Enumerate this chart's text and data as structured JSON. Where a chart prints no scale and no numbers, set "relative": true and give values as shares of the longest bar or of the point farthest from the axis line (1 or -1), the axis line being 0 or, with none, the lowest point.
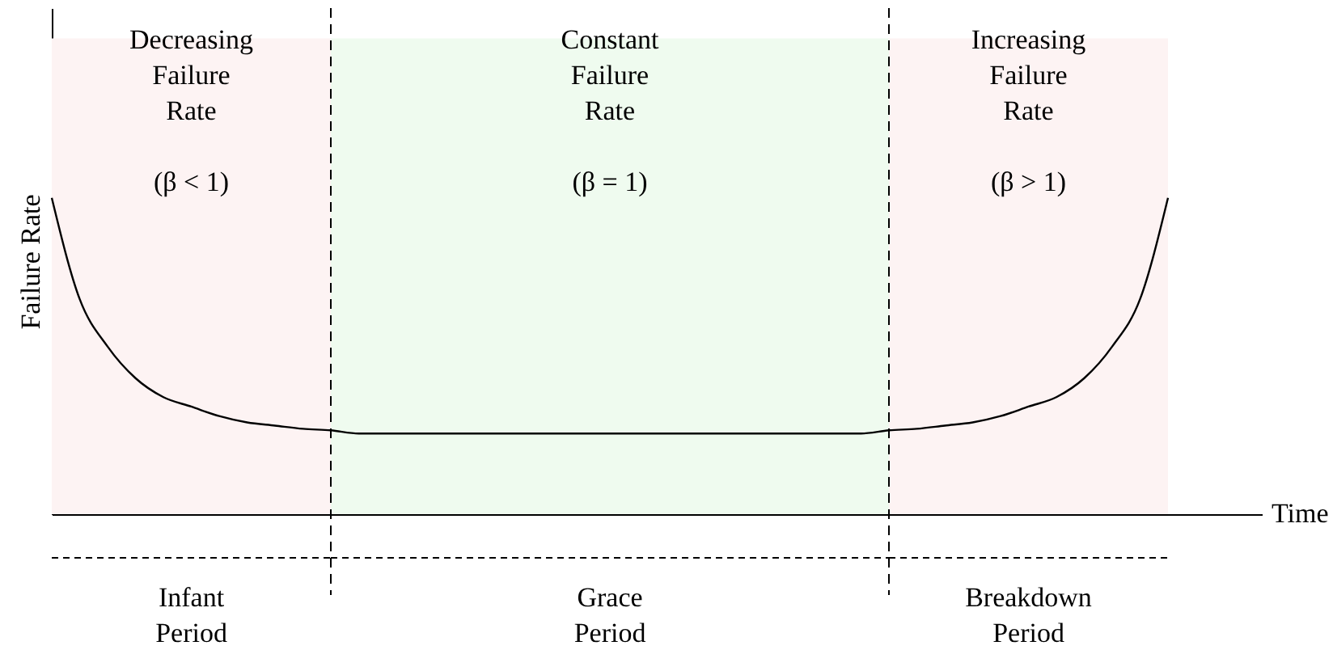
{
  "chart_data": {
    "type": "line",
    "relative": true,
    "xlabel": "Time",
    "ylabel": "Failure Rate",
    "categories": [
      null,
      null,
      null,
      null,
      null,
      null,
      null,
      null,
      null,
      null,
      null,
      null,
      null,
      null,
      null,
      null,
      null,
      null,
      null,
      null,
      null,
      null,
      null,
      null,
      null,
      null,
      null,
      null,
      null,
      null,
      null,
      null,
      null,
      null,
      null,
      null,
      null,
      null,
      null,
      null,
      null
    ],
    "series": [
      {
        "color": "#000000",
        "values": [
          1.0,
          0.68,
          0.53,
          0.43,
          0.37,
          0.34,
          0.31,
          0.29,
          0.28,
          0.27,
          0.265,
          0.255,
          0.255,
          0.255,
          0.255,
          0.255,
          0.255,
          0.255,
          0.255,
          0.255,
          0.255,
          0.255,
          0.255,
          0.255,
          0.255,
          0.255,
          0.255,
          0.255,
          0.255,
          0.255,
          0.265,
          0.27,
          0.28,
          0.29,
          0.31,
          0.34,
          0.37,
          0.43,
          0.53,
          0.68,
          1.0
        ]
      }
    ],
    "annotations": [
      "Decreasing\nFailure\nRate\n\n(β < 1)",
      "Constant\nFailure\nRate\n\n(β = 1)",
      "Increasing\nFailure\nRate\n\n(β > 1)",
      "Infant\nPeriod",
      "Grace\nPeriod",
      "Breakdown\nPeriod"
    ],
    "grid": false,
    "marker": "none",
    "line_style": "solid"
  }
}
